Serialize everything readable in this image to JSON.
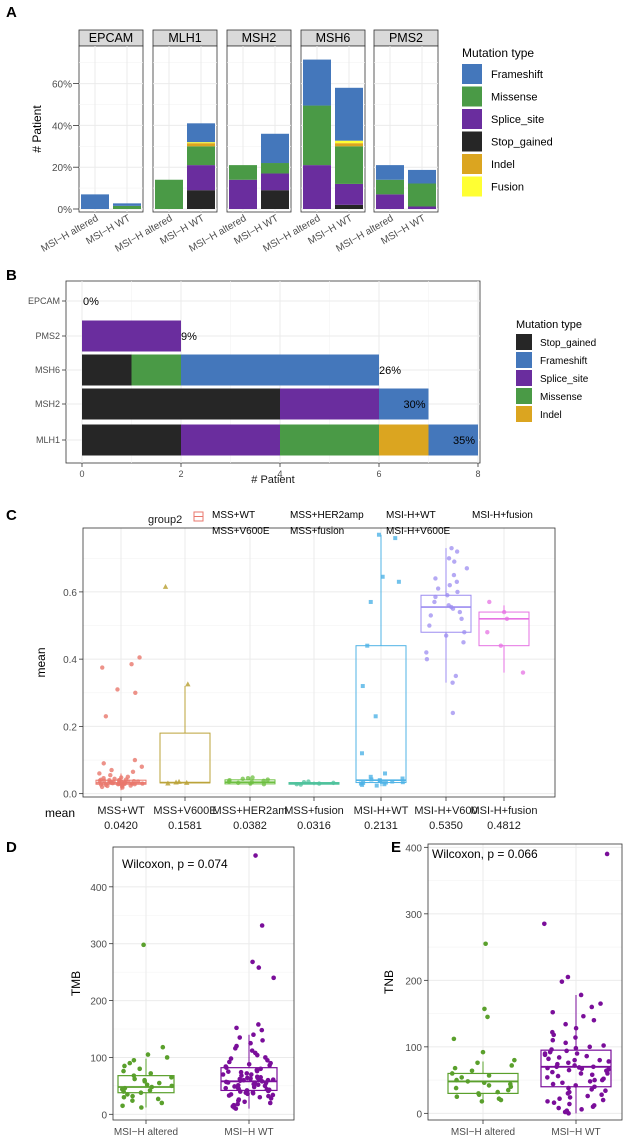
{
  "colors": {
    "Frameshift": "#4477bb",
    "Missense": "#4a9a46",
    "Splice_site": "#6a2d9e",
    "Stop_gained": "#262626",
    "Indel": "#dba520",
    "Fusion": "#ffff33",
    "altered": "#5aa02c",
    "wt": "#7a0e9a",
    "groups": [
      "#e9776c",
      "#bba33a",
      "#6dbf40",
      "#4fc29c",
      "#4fb3e6",
      "#9c8cf0",
      "#e672e3"
    ]
  },
  "chart_data": [
    {
      "panel": "A",
      "type": "bar",
      "stacked": true,
      "facets": [
        "EPCAM",
        "MLH1",
        "MSH2",
        "MSH6",
        "PMS2"
      ],
      "categories": [
        "MSI−H altered",
        "MSI−H WT"
      ],
      "ylabel": "# Patient",
      "ylim": [
        0,
        0.78
      ],
      "yticks": [
        0,
        0.2,
        0.4,
        0.6
      ],
      "ytick_labels": [
        "0%",
        "20%",
        "40%",
        "60%"
      ],
      "legend_title": "Mutation type",
      "legend": [
        "Frameshift",
        "Missense",
        "Splice_site",
        "Stop_gained",
        "Indel",
        "Fusion"
      ],
      "stack_order": [
        "Stop_gained",
        "Splice_site",
        "Missense",
        "Indel",
        "Fusion",
        "Frameshift"
      ],
      "bars": [
        [
          {
            "Missense": 0.0,
            "Frameshift": 0.07
          },
          {
            "Missense": 0.015,
            "Frameshift": 0.012
          }
        ],
        [
          {
            "Missense": 0.14
          },
          {
            "Stop_gained": 0.09,
            "Splice_site": 0.12,
            "Missense": 0.09,
            "Indel": 0.015,
            "Fusion": 0.005,
            "Frameshift": 0.09
          }
        ],
        [
          {
            "Splice_site": 0.14,
            "Missense": 0.07
          },
          {
            "Stop_gained": 0.09,
            "Splice_site": 0.08,
            "Missense": 0.05,
            "Frameshift": 0.14
          }
        ],
        [
          {
            "Splice_site": 0.21,
            "Missense": 0.285,
            "Frameshift": 0.22
          },
          {
            "Stop_gained": 0.02,
            "Splice_site": 0.1,
            "Missense": 0.18,
            "Indel": 0.015,
            "Fusion": 0.012,
            "Frameshift": 0.253
          }
        ],
        [
          {
            "Splice_site": 0.07,
            "Missense": 0.07,
            "Frameshift": 0.07
          },
          {
            "Splice_site": 0.012,
            "Missense": 0.11,
            "Frameshift": 0.065
          }
        ]
      ]
    },
    {
      "panel": "B",
      "type": "bar",
      "orientation": "horizontal",
      "stacked": true,
      "categories": [
        "EPCAM",
        "PMS2",
        "MSH6",
        "MSH2",
        "MLH1"
      ],
      "xlabel": "# Patient",
      "xlim": [
        0,
        8
      ],
      "xticks": [
        0,
        2,
        4,
        6,
        8
      ],
      "legend_title": "Mutation type",
      "legend": [
        "Stop_gained",
        "Frameshift",
        "Splice_site",
        "Missense",
        "Indel"
      ],
      "bars": [
        [],
        [
          [
            "Splice_site",
            2
          ]
        ],
        [
          [
            "Stop_gained",
            1
          ],
          [
            "Missense",
            1
          ],
          [
            "Frameshift",
            4
          ]
        ],
        [
          [
            "Stop_gained",
            4
          ],
          [
            "Splice_site",
            2
          ],
          [
            "Frameshift",
            1
          ]
        ],
        [
          [
            "Stop_gained",
            2
          ],
          [
            "Splice_site",
            2
          ],
          [
            "Missense",
            2
          ],
          [
            "Indel",
            1
          ],
          [
            "Frameshift",
            1
          ]
        ]
      ],
      "labels": [
        "0%",
        "9%",
        "26%",
        "30%",
        "35%"
      ]
    },
    {
      "panel": "C",
      "type": "box",
      "legend_title": "group2",
      "legend": [
        "MSS+WT",
        "MSS+V600E",
        "MSS+HER2amp",
        "MSS+fusion",
        "MSI-H+WT",
        "MSI-H+V600E",
        "MSI-H+fusion"
      ],
      "categories": [
        "MSS+WT",
        "MSS+V600E",
        "MSS+HER2am",
        "MSS+fusion",
        "MSI-H+WT",
        "MSI-H+V600",
        "MSI-H+fusion"
      ],
      "ylabel": "mean",
      "ylim": [
        -0.01,
        0.79
      ],
      "yticks": [
        0,
        0.2,
        0.4,
        0.6
      ],
      "ytick_labels": [
        "0.0",
        "0.2",
        "0.4",
        "0.6"
      ],
      "table_title": "mean",
      "means": [
        "0.0420",
        "0.1581",
        "0.0382",
        "0.0316",
        "0.2131",
        "0.5350",
        "0.4812"
      ],
      "boxes": [
        {
          "min": 0.01,
          "q1": 0.028,
          "med": 0.032,
          "q3": 0.04,
          "max": 0.06
        },
        {
          "min": 0.03,
          "q1": 0.032,
          "med": 0.033,
          "q3": 0.18,
          "max": 0.32
        },
        {
          "min": 0.025,
          "q1": 0.029,
          "med": 0.034,
          "q3": 0.041,
          "max": 0.048
        },
        {
          "min": 0.025,
          "q1": 0.028,
          "med": 0.03,
          "q3": 0.033,
          "max": 0.036
        },
        {
          "min": 0.022,
          "q1": 0.033,
          "med": 0.04,
          "q3": 0.44,
          "max": 0.77
        },
        {
          "min": 0.33,
          "q1": 0.48,
          "med": 0.555,
          "q3": 0.59,
          "max": 0.73
        },
        {
          "min": 0.36,
          "q1": 0.44,
          "med": 0.52,
          "q3": 0.54,
          "max": 0.56
        }
      ],
      "points": [
        [
          0.405,
          0.385,
          0.375,
          0.31,
          0.3,
          0.23,
          0.1,
          0.09,
          0.08,
          0.07,
          0.065,
          0.06,
          0.055,
          0.05,
          0.048,
          0.046,
          0.044,
          0.042,
          0.04,
          0.039,
          0.038,
          0.037,
          0.036,
          0.035,
          0.034,
          0.033,
          0.033,
          0.032,
          0.032,
          0.031,
          0.031,
          0.03,
          0.03,
          0.029,
          0.029,
          0.028,
          0.028,
          0.027,
          0.026,
          0.025,
          0.024,
          0.023,
          0.022,
          0.02,
          0.018,
          0.035,
          0.036,
          0.038,
          0.04,
          0.041
        ],
        [
          0.615,
          0.325,
          0.035,
          0.033,
          0.032,
          0.03
        ],
        [
          0.048,
          0.046,
          0.044,
          0.042,
          0.04,
          0.038,
          0.036,
          0.034,
          0.032,
          0.03,
          0.028
        ],
        [
          0.036,
          0.034,
          0.032,
          0.03,
          0.028,
          0.027
        ],
        [
          0.77,
          0.76,
          0.645,
          0.63,
          0.57,
          0.44,
          0.32,
          0.23,
          0.12,
          0.06,
          0.05,
          0.045,
          0.042,
          0.04,
          0.038,
          0.036,
          0.035,
          0.034,
          0.033,
          0.032,
          0.03,
          0.028,
          0.026,
          0.024
        ],
        [
          0.73,
          0.72,
          0.7,
          0.69,
          0.67,
          0.65,
          0.64,
          0.63,
          0.62,
          0.61,
          0.6,
          0.59,
          0.585,
          0.57,
          0.56,
          0.555,
          0.55,
          0.54,
          0.53,
          0.52,
          0.5,
          0.48,
          0.47,
          0.45,
          0.42,
          0.4,
          0.35,
          0.33,
          0.24
        ],
        [
          0.57,
          0.54,
          0.52,
          0.48,
          0.44,
          0.36
        ]
      ]
    },
    {
      "panel": "D",
      "type": "box",
      "categories": [
        "MSI−H altered",
        "MSI−H WT"
      ],
      "ylabel": "TMB",
      "ylim": [
        -10,
        470
      ],
      "yticks": [
        0,
        100,
        200,
        300,
        400
      ],
      "annotation": "Wilcoxon, p = 0.074",
      "boxes": [
        {
          "min": 12,
          "q1": 38,
          "med": 48,
          "q3": 68,
          "max": 98
        },
        {
          "min": 10,
          "q1": 42,
          "med": 58,
          "q3": 82,
          "max": 140
        }
      ],
      "points": [
        [
          298,
          118,
          105,
          100,
          95,
          90,
          85,
          80,
          76,
          72,
          68,
          65,
          62,
          60,
          58,
          55,
          52,
          50,
          48,
          46,
          44,
          42,
          40,
          38,
          35,
          32,
          30,
          27,
          24,
          20,
          15,
          12
        ],
        [
          455,
          332,
          268,
          258,
          240,
          158,
          152,
          148,
          140,
          135,
          130,
          125,
          120,
          116,
          112,
          108,
          104,
          100,
          98,
          95,
          92,
          90,
          88,
          86,
          84,
          82,
          80,
          78,
          76,
          74,
          72,
          70,
          68,
          66,
          65,
          64,
          63,
          62,
          61,
          60,
          59,
          58,
          57,
          56,
          55,
          54,
          53,
          52,
          51,
          50,
          49,
          48,
          47,
          46,
          45,
          44,
          43,
          42,
          41,
          40,
          39,
          38,
          37,
          36,
          35,
          34,
          33,
          32,
          30,
          28,
          26,
          24,
          22,
          20,
          18,
          16,
          14,
          12,
          10,
          60,
          62,
          64,
          70,
          75
        ]
      ]
    },
    {
      "panel": "E",
      "type": "box",
      "categories": [
        "MSI−H altered",
        "MSI−H WT"
      ],
      "ylabel": "TNB",
      "ylim": [
        -10,
        405
      ],
      "yticks": [
        0,
        100,
        200,
        300,
        400
      ],
      "annotation": "Wilcoxon, p = 0.066",
      "boxes": [
        {
          "min": 18,
          "q1": 30,
          "med": 48,
          "q3": 60,
          "max": 78
        },
        {
          "min": 0,
          "q1": 40,
          "med": 70,
          "q3": 95,
          "max": 178
        }
      ],
      "points": [
        [
          255,
          157,
          145,
          112,
          92,
          80,
          76,
          72,
          68,
          64,
          60,
          57,
          54,
          50,
          48,
          46,
          44,
          42,
          40,
          38,
          35,
          32,
          30,
          28,
          25,
          22,
          20,
          18
        ],
        [
          390,
          285,
          205,
          198,
          178,
          165,
          160,
          152,
          146,
          140,
          134,
          128,
          122,
          118,
          114,
          110,
          106,
          102,
          100,
          98,
          96,
          94,
          92,
          90,
          88,
          86,
          84,
          82,
          80,
          78,
          76,
          74,
          72,
          70,
          69,
          68,
          67,
          66,
          65,
          64,
          62,
          60,
          58,
          56,
          54,
          52,
          50,
          48,
          46,
          44,
          42,
          40,
          38,
          36,
          34,
          32,
          30,
          28,
          26,
          24,
          22,
          20,
          18,
          16,
          14,
          12,
          10,
          8,
          6,
          4,
          2,
          0,
          50,
          60,
          70,
          80,
          90
        ]
      ]
    }
  ]
}
